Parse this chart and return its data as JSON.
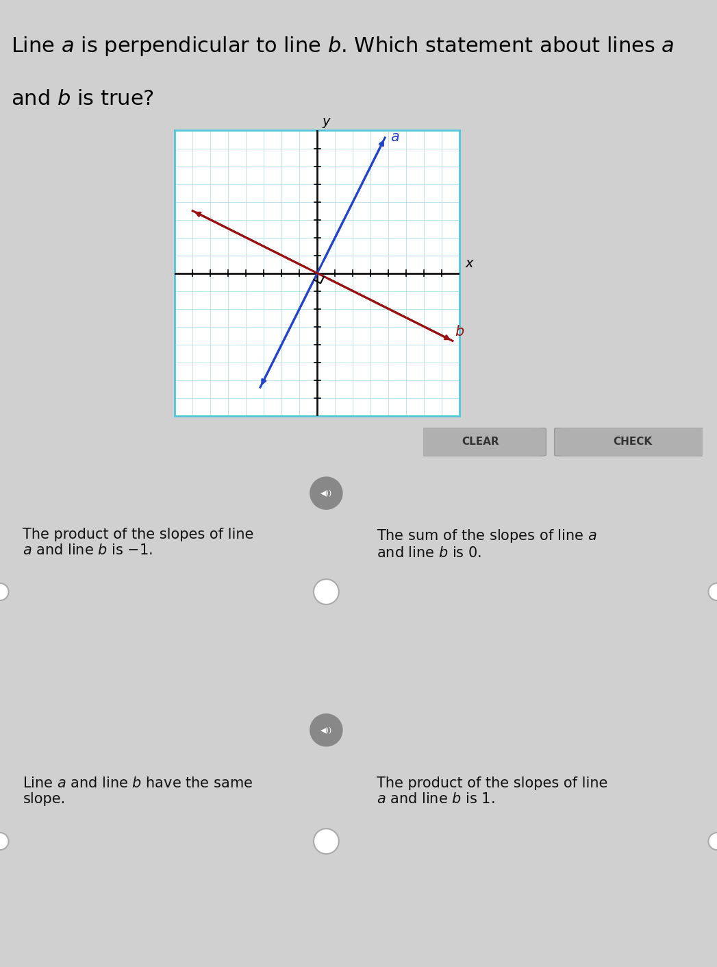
{
  "bg_color": "#d0d0d0",
  "title_text_line1": "Line ",
  "title_text_line2": " is perpendicular to line ",
  "title_text_line3": ". Which statement about lines ",
  "title_text_line4": "and ",
  "title_text_line5": " is true?",
  "title_fontsize": 22,
  "graph_bg": "#ffffff",
  "graph_border_color": "#50c8d8",
  "graph_outer_bg": "#c0c0c0",
  "grid_color": "#b0dff0",
  "axis_color": "#111111",
  "line_a_color": "#2244cc",
  "line_b_color": "#991111",
  "answer_box_bg": "#ffffff",
  "answer_border_color": "#cccccc",
  "answer_texts": [
    "The product of the slopes of line\n$a$ and line $b$ is $-1$.",
    "The sum of the slopes of line $a$\nand line $b$ is 0.",
    "Line $a$ and line $b$ have the same\nslope.",
    "The product of the slopes of line\n$a$ and line $b$ is 1."
  ],
  "clear_btn_color": "#aaaaaa",
  "check_btn_color": "#aaaaaa",
  "speaker_color": "#888888",
  "radio_fill": "#ffffff",
  "radio_edge": "#bbbbbb"
}
